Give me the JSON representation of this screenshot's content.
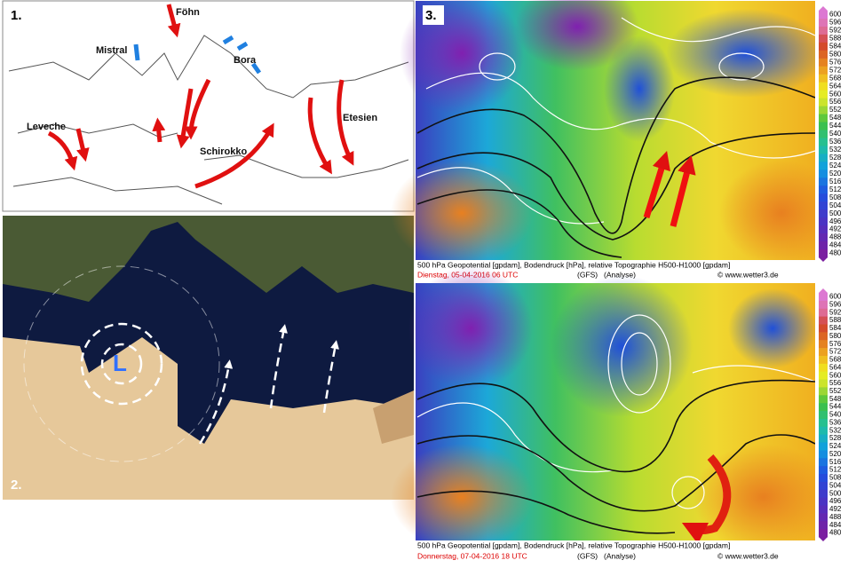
{
  "panel1": {
    "number": "1.",
    "winds": [
      "Föhn",
      "Mistral",
      "Bora",
      "Leveche",
      "Etesien",
      "Schirokko"
    ]
  },
  "panel2": {
    "number": "2.",
    "low": "L"
  },
  "panel3": {
    "number": "3.",
    "caption": "500 hPa Geopotential [gpdam], Bodendruck [hPa], relative Topographie H500-H1000 [gpdam]",
    "date": "Dienstag, 05-04-2016  06 UTC",
    "model": "(GFS)",
    "run": "(Analyse)",
    "credit": "© www.wetter3.de"
  },
  "panel4": {
    "caption": "500 hPa Geopotential [gpdam], Bodendruck [hPa], relative Topographie H500-H1000 [gpdam]",
    "date": "Donnerstag, 07-04-2016  18 UTC",
    "model": "(GFS)",
    "run": "(Analyse)",
    "credit": "© www.wetter3.de"
  },
  "colorbar": [
    600,
    596,
    592,
    588,
    584,
    580,
    576,
    572,
    568,
    564,
    560,
    556,
    552,
    548,
    544,
    540,
    536,
    532,
    528,
    524,
    520,
    516,
    512,
    508,
    504,
    500,
    496,
    492,
    488,
    484,
    480
  ]
}
